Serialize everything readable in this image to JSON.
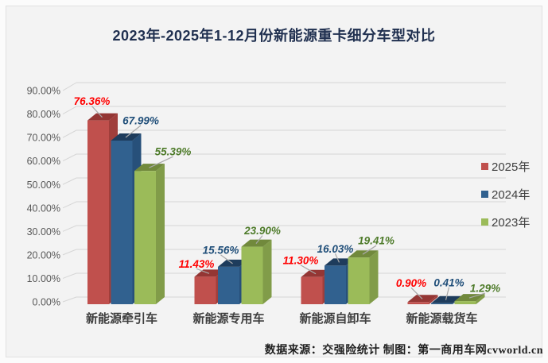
{
  "title": "2023年-2025年1-12月份新能源重卡细分车型对比",
  "footer": "数据来源：交强险统计  制图：第一商用车网cvworld.cn",
  "legend": {
    "items": [
      {
        "label": "2025年"
      },
      {
        "label": "2024年"
      },
      {
        "label": "2023年"
      }
    ]
  },
  "chart_data": {
    "type": "bar",
    "style": "3d-clustered",
    "title": "2023年-2025年1-12月份新能源重卡细分车型对比",
    "categories": [
      "新能源牵引车",
      "新能源专用车",
      "新能源自卸车",
      "新能源载货车"
    ],
    "series": [
      {
        "name": "2025年",
        "color": "#C0504D",
        "color_top": "#943634",
        "color_side": "#A03E3B",
        "label_color": "#FF0000",
        "values": [
          76.36,
          11.43,
          11.3,
          0.9
        ]
      },
      {
        "name": "2024年",
        "color": "#31618F",
        "color_top": "#1E3C5C",
        "color_side": "#27507A",
        "label_color": "#1F4E79",
        "values": [
          67.99,
          15.56,
          16.03,
          0.41
        ]
      },
      {
        "name": "2023年",
        "color": "#9BBB59",
        "color_top": "#71893C",
        "color_side": "#819C49",
        "label_color": "#4E7B2A",
        "values": [
          55.39,
          23.9,
          19.41,
          1.29
        ]
      }
    ],
    "xlabel": "",
    "ylabel": "",
    "ylim": [
      0,
      90
    ],
    "tick_step": 10,
    "tick_format": "%.2f%%",
    "data_label_format": "%.2f%%",
    "grid": true,
    "legend_position": "right",
    "colors": {
      "panel_bg": "#f3f3f3",
      "gridline": "#d6d6d6",
      "axis_text": "#595959",
      "category_text": "#3f3f3f",
      "title_text": "#203050",
      "leader_line": "#a8a8a8"
    }
  }
}
